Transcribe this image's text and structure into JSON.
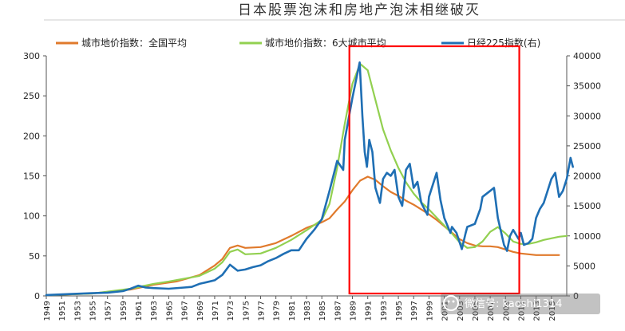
{
  "chart_data": {
    "type": "line",
    "title": "日本股票泡沫和房地产泡沫相继破灭",
    "y_left": {
      "range": [
        0,
        300
      ],
      "ticks": [
        0,
        50,
        100,
        150,
        200,
        250,
        300
      ]
    },
    "y_right": {
      "range": [
        0,
        40000
      ],
      "ticks": [
        0,
        5000,
        10000,
        15000,
        20000,
        25000,
        30000,
        35000,
        40000
      ]
    },
    "x_range": [
      1949,
      2017
    ],
    "x_ticks": [
      "1949",
      "1951",
      "1953",
      "1955",
      "1957",
      "1959",
      "1961",
      "1963",
      "1965",
      "1967",
      "1969",
      "1971",
      "1973",
      "1975",
      "1977",
      "1979",
      "1981",
      "1983",
      "1985",
      "1987",
      "1989",
      "1991",
      "1993",
      "1995",
      "1997",
      "1999",
      "2001",
      "2003",
      "2005",
      "2007",
      "2009",
      "2011",
      "2013",
      "2015"
    ],
    "series": [
      {
        "name": "城市地价指数：全国平均",
        "color": "#E07A2C",
        "axis": "left",
        "points": [
          [
            1949,
            1
          ],
          [
            1955,
            3
          ],
          [
            1960,
            8
          ],
          [
            1963,
            14
          ],
          [
            1966,
            18
          ],
          [
            1969,
            26
          ],
          [
            1971,
            38
          ],
          [
            1972,
            46
          ],
          [
            1973,
            60
          ],
          [
            1974,
            63
          ],
          [
            1975,
            60
          ],
          [
            1977,
            61
          ],
          [
            1979,
            66
          ],
          [
            1981,
            75
          ],
          [
            1983,
            85
          ],
          [
            1985,
            92
          ],
          [
            1986,
            97
          ],
          [
            1987,
            108
          ],
          [
            1988,
            118
          ],
          [
            1989,
            132
          ],
          [
            1990,
            144
          ],
          [
            1991,
            149
          ],
          [
            1992,
            145
          ],
          [
            1993,
            137
          ],
          [
            1994,
            130
          ],
          [
            1995,
            125
          ],
          [
            1996,
            119
          ],
          [
            1997,
            114
          ],
          [
            1998,
            108
          ],
          [
            1999,
            102
          ],
          [
            2000,
            95
          ],
          [
            2001,
            87
          ],
          [
            2002,
            79
          ],
          [
            2003,
            71
          ],
          [
            2004,
            66
          ],
          [
            2005,
            63
          ],
          [
            2006,
            62
          ],
          [
            2007,
            62
          ],
          [
            2008,
            61
          ],
          [
            2009,
            58
          ],
          [
            2010,
            55
          ],
          [
            2011,
            53
          ],
          [
            2012,
            52
          ],
          [
            2013,
            51
          ],
          [
            2014,
            51
          ],
          [
            2015,
            51
          ],
          [
            2016,
            51
          ]
        ]
      },
      {
        "name": "城市地价指数：6大城市平均",
        "color": "#92D050",
        "axis": "left",
        "points": [
          [
            1949,
            1
          ],
          [
            1955,
            3
          ],
          [
            1960,
            9
          ],
          [
            1963,
            15
          ],
          [
            1965,
            18
          ],
          [
            1969,
            25
          ],
          [
            1971,
            34
          ],
          [
            1972,
            42
          ],
          [
            1973,
            55
          ],
          [
            1974,
            58
          ],
          [
            1975,
            52
          ],
          [
            1977,
            53
          ],
          [
            1979,
            60
          ],
          [
            1981,
            70
          ],
          [
            1983,
            82
          ],
          [
            1985,
            95
          ],
          [
            1986,
            115
          ],
          [
            1987,
            160
          ],
          [
            1988,
            215
          ],
          [
            1989,
            265
          ],
          [
            1990,
            290
          ],
          [
            1991,
            282
          ],
          [
            1992,
            245
          ],
          [
            1993,
            208
          ],
          [
            1994,
            182
          ],
          [
            1995,
            160
          ],
          [
            1996,
            142
          ],
          [
            1997,
            128
          ],
          [
            1998,
            117
          ],
          [
            1999,
            108
          ],
          [
            2000,
            98
          ],
          [
            2001,
            88
          ],
          [
            2002,
            78
          ],
          [
            2003,
            67
          ],
          [
            2004,
            60
          ],
          [
            2005,
            61
          ],
          [
            2006,
            68
          ],
          [
            2007,
            80
          ],
          [
            2008,
            86
          ],
          [
            2009,
            78
          ],
          [
            2010,
            68
          ],
          [
            2011,
            65
          ],
          [
            2012,
            65
          ],
          [
            2013,
            67
          ],
          [
            2014,
            70
          ],
          [
            2015,
            72
          ],
          [
            2016,
            74
          ],
          [
            2017,
            75
          ]
        ]
      },
      {
        "name": "日经225指数(右)",
        "color": "#1F6FB4",
        "axis": "right",
        "points": [
          [
            1949,
            150
          ],
          [
            1952,
            300
          ],
          [
            1955,
            450
          ],
          [
            1957,
            550
          ],
          [
            1959,
            800
          ],
          [
            1960,
            1200
          ],
          [
            1961,
            1700
          ],
          [
            1962,
            1400
          ],
          [
            1963,
            1300
          ],
          [
            1965,
            1200
          ],
          [
            1967,
            1400
          ],
          [
            1968,
            1500
          ],
          [
            1969,
            2000
          ],
          [
            1970,
            2300
          ],
          [
            1971,
            2600
          ],
          [
            1972,
            3500
          ],
          [
            1973,
            5200
          ],
          [
            1974,
            4200
          ],
          [
            1975,
            4400
          ],
          [
            1976,
            4800
          ],
          [
            1977,
            5100
          ],
          [
            1978,
            5800
          ],
          [
            1979,
            6300
          ],
          [
            1980,
            7000
          ],
          [
            1981,
            7600
          ],
          [
            1982,
            7600
          ],
          [
            1983,
            9500
          ],
          [
            1984,
            11000
          ],
          [
            1985,
            12800
          ],
          [
            1986,
            17500
          ],
          [
            1987,
            22500
          ],
          [
            1987.8,
            21000
          ],
          [
            1988,
            26000
          ],
          [
            1989,
            33000
          ],
          [
            1989.95,
            38900
          ],
          [
            1990.3,
            30000
          ],
          [
            1990.6,
            24000
          ],
          [
            1990.9,
            21500
          ],
          [
            1991.2,
            26000
          ],
          [
            1991.6,
            24000
          ],
          [
            1992,
            18000
          ],
          [
            1992.6,
            15500
          ],
          [
            1993,
            19500
          ],
          [
            1993.5,
            20500
          ],
          [
            1994,
            20000
          ],
          [
            1994.5,
            21000
          ],
          [
            1995,
            16500
          ],
          [
            1995.5,
            15000
          ],
          [
            1996,
            21000
          ],
          [
            1996.5,
            22000
          ],
          [
            1997,
            18000
          ],
          [
            1997.5,
            19000
          ],
          [
            1998,
            15500
          ],
          [
            1998.8,
            13500
          ],
          [
            1999,
            16500
          ],
          [
            2000,
            20500
          ],
          [
            2000.5,
            16000
          ],
          [
            2001,
            13000
          ],
          [
            2001.8,
            10500
          ],
          [
            2002,
            11500
          ],
          [
            2002.6,
            10500
          ],
          [
            2003.3,
            7800
          ],
          [
            2003.8,
            10500
          ],
          [
            2004,
            11500
          ],
          [
            2005,
            12000
          ],
          [
            2005.7,
            14500
          ],
          [
            2006,
            16500
          ],
          [
            2007,
            17500
          ],
          [
            2007.5,
            18000
          ],
          [
            2008,
            13000
          ],
          [
            2008.8,
            8500
          ],
          [
            2009.2,
            7500
          ],
          [
            2009.6,
            10000
          ],
          [
            2010,
            11000
          ],
          [
            2010.7,
            9500
          ],
          [
            2011,
            10500
          ],
          [
            2011.4,
            8500
          ],
          [
            2012,
            8800
          ],
          [
            2012.5,
            9500
          ],
          [
            2013,
            13000
          ],
          [
            2013.5,
            14500
          ],
          [
            2014,
            15500
          ],
          [
            2015,
            19500
          ],
          [
            2015.5,
            20500
          ],
          [
            2016,
            16500
          ],
          [
            2016.5,
            17500
          ],
          [
            2017,
            19500
          ],
          [
            2017.5,
            23000
          ],
          [
            2017.8,
            21500
          ]
        ]
      }
    ],
    "annotation": {
      "type": "rectangle",
      "color": "#FF0000",
      "x_range": [
        1988.6,
        2010.8
      ]
    }
  },
  "watermark": {
    "icon": "wechat-icon",
    "text": "微信号: kaoshi1314"
  }
}
